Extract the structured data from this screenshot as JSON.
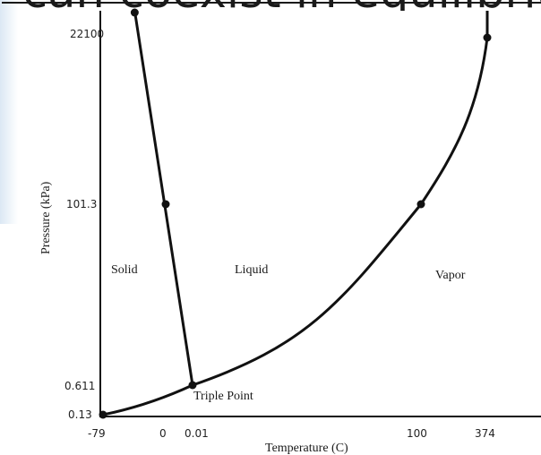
{
  "slide": {
    "heading": "r can coexist in equilibriu"
  },
  "chart_data": {
    "type": "line",
    "title": "",
    "xlabel": "Temperature (C)",
    "ylabel": "Pressure (kPa)",
    "x_ticks": [
      "-79",
      "0",
      "0.01",
      "100",
      "374"
    ],
    "y_ticks": [
      "0.13",
      "0.611",
      "101.3",
      "22100"
    ],
    "series": [
      {
        "x": [
          "-79",
          "0.01"
        ],
        "y": [
          "0.13",
          "0.611"
        ]
      },
      {
        "x": [
          "0.01",
          "0",
          "-20"
        ],
        "y": [
          "0.611",
          "101.3",
          "22100"
        ]
      },
      {
        "x": [
          "0.01",
          "100",
          "374"
        ],
        "y": [
          "0.611",
          "101.3",
          "22100"
        ]
      }
    ],
    "points": [
      {
        "x": "-79",
        "y": "0.13"
      },
      {
        "x": "0.01",
        "y": "0.611",
        "label": "Triple Point"
      },
      {
        "x": "0",
        "y": "101.3"
      },
      {
        "x": "100",
        "y": "101.3"
      },
      {
        "x": "374",
        "y": "22100"
      }
    ],
    "regions": [
      "Solid",
      "Liquid",
      "Vapor"
    ],
    "annotations": [
      "Triple Point"
    ],
    "grid": false,
    "axis_style": "left and bottom axes only"
  }
}
